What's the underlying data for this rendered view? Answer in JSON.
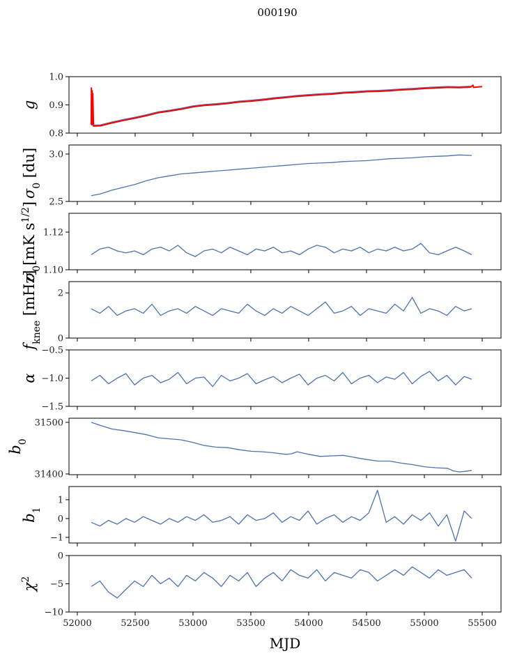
{
  "chart_data": {
    "type": "line",
    "title": "000190",
    "xlabel": "MJD",
    "xlim": [
      51928,
      55663
    ],
    "xticks": [
      52000,
      52500,
      53000,
      53500,
      54000,
      54500,
      55000,
      55500
    ],
    "line_color": "#4c72b0",
    "panels": [
      {
        "id": "g",
        "ylabel": {
          "base": "g",
          "sub": "",
          "tail": "",
          "sup": "",
          "tail2": ""
        },
        "ylim": [
          0.8,
          1.0
        ],
        "yticks": [
          0.8,
          0.9,
          1.0
        ],
        "ytick_labels": [
          "0.8",
          "0.9",
          "1.0"
        ],
        "series": [
          {
            "name": "g",
            "color": "#4c72b0",
            "width": 2.5,
            "x": [
              52140,
              52200,
              52300,
              52400,
              52500,
              52600,
              52700,
              52800,
              52900,
              53000,
              53100,
              53200,
              53300,
              53400,
              53500,
              53600,
              53700,
              53800,
              53900,
              54000,
              54100,
              54200,
              54300,
              54400,
              54500,
              54600,
              54700,
              54800,
              54900,
              55000,
              55100,
              55200,
              55300,
              55400
            ],
            "y": [
              0.827,
              0.828,
              0.838,
              0.847,
              0.855,
              0.864,
              0.874,
              0.88,
              0.887,
              0.895,
              0.9,
              0.903,
              0.907,
              0.912,
              0.915,
              0.919,
              0.924,
              0.928,
              0.932,
              0.935,
              0.938,
              0.94,
              0.944,
              0.946,
              0.949,
              0.95,
              0.952,
              0.955,
              0.957,
              0.96,
              0.962,
              0.964,
              0.963,
              0.965
            ]
          },
          {
            "name": "g_fit",
            "color": "#ff0000",
            "width": 2,
            "x": [
              52120,
              52122,
              52125,
              52128,
              52131,
              52134,
              52140,
              52200,
              52300,
              52400,
              52500,
              52600,
              52700,
              52800,
              52900,
              53000,
              53100,
              53200,
              53300,
              53400,
              53500,
              53600,
              53700,
              53800,
              53900,
              54000,
              54100,
              54200,
              54300,
              54400,
              54500,
              54600,
              54700,
              54800,
              54900,
              55000,
              55100,
              55200,
              55300,
              55400,
              55420,
              55425,
              55500
            ],
            "y": [
              0.83,
              0.96,
              0.83,
              0.95,
              0.83,
              0.94,
              0.825,
              0.826,
              0.836,
              0.845,
              0.853,
              0.862,
              0.872,
              0.878,
              0.885,
              0.893,
              0.898,
              0.901,
              0.905,
              0.91,
              0.913,
              0.917,
              0.922,
              0.926,
              0.93,
              0.933,
              0.936,
              0.938,
              0.942,
              0.944,
              0.947,
              0.948,
              0.95,
              0.953,
              0.955,
              0.958,
              0.96,
              0.962,
              0.961,
              0.963,
              0.97,
              0.962,
              0.965
            ]
          }
        ]
      },
      {
        "id": "sigma0-du",
        "ylabel": {
          "base": "σ",
          "sub": "0",
          "tail": " [du]",
          "sup": "",
          "tail2": ""
        },
        "ylim": [
          2.5,
          3.095
        ],
        "yticks": [
          2.5,
          3.0
        ],
        "ytick_labels": [
          "2.5",
          "3.0"
        ],
        "series": [
          {
            "name": "sigma0_du",
            "color": "#4c72b0",
            "width": 1.3,
            "x": [
              52120,
              52200,
              52300,
              52400,
              52500,
              52600,
              52700,
              52800,
              52900,
              53000,
              53100,
              53200,
              53300,
              53400,
              53500,
              53600,
              53700,
              53800,
              53900,
              54000,
              54100,
              54200,
              54300,
              54400,
              54500,
              54600,
              54700,
              54800,
              54900,
              55000,
              55100,
              55200,
              55300,
              55410
            ],
            "y": [
              2.56,
              2.58,
              2.62,
              2.65,
              2.68,
              2.72,
              2.75,
              2.77,
              2.79,
              2.8,
              2.81,
              2.82,
              2.83,
              2.84,
              2.85,
              2.86,
              2.87,
              2.88,
              2.89,
              2.9,
              2.905,
              2.91,
              2.92,
              2.925,
              2.93,
              2.94,
              2.95,
              2.955,
              2.96,
              2.97,
              2.975,
              2.98,
              2.99,
              2.985
            ]
          }
        ]
      },
      {
        "id": "sigma0-mk",
        "ylabel": {
          "base": "σ",
          "sub": "0",
          "tail": "[mK s",
          "sup": "1/2",
          "tail2": "]"
        },
        "ylim": [
          1.1,
          1.13
        ],
        "yticks": [
          1.1,
          1.12
        ],
        "ytick_labels": [
          "1.10",
          "1.12"
        ],
        "series": [
          {
            "name": "sigma0_mk",
            "color": "#4c72b0",
            "width": 1.3,
            "x_ref": "shared",
            "y": [
              1.108,
              1.111,
              1.112,
              1.11,
              1.109,
              1.11,
              1.108,
              1.111,
              1.112,
              1.11,
              1.113,
              1.109,
              1.107,
              1.11,
              1.111,
              1.109,
              1.112,
              1.11,
              1.108,
              1.111,
              1.11,
              1.112,
              1.109,
              1.11,
              1.108,
              1.111,
              1.113,
              1.112,
              1.109,
              1.111,
              1.11,
              1.112,
              1.109,
              1.111,
              1.11,
              1.112,
              1.11,
              1.111,
              1.114,
              1.109,
              1.108,
              1.11,
              1.112,
              1.11,
              1.108
            ]
          }
        ]
      },
      {
        "id": "fknee",
        "ylabel": {
          "base": "f",
          "sub": "knee",
          "tail": " [mHz]",
          "sup": "",
          "tail2": ""
        },
        "ylim": [
          0,
          2.5
        ],
        "yticks": [
          0,
          2
        ],
        "ytick_labels": [
          "0",
          "2"
        ],
        "series": [
          {
            "name": "fknee",
            "color": "#4c72b0",
            "width": 1.3,
            "x_ref": "shared",
            "y": [
              1.3,
              1.1,
              1.4,
              1.0,
              1.2,
              1.3,
              1.1,
              1.5,
              1.0,
              1.2,
              1.3,
              1.1,
              1.4,
              1.2,
              1.0,
              1.3,
              1.2,
              1.1,
              1.5,
              1.2,
              1.0,
              1.3,
              1.1,
              1.4,
              1.2,
              1.0,
              1.3,
              1.6,
              1.1,
              1.2,
              1.4,
              1.0,
              1.3,
              1.2,
              1.1,
              1.5,
              1.2,
              1.8,
              1.1,
              1.3,
              1.2,
              1.0,
              1.4,
              1.2,
              1.3
            ]
          }
        ]
      },
      {
        "id": "alpha",
        "ylabel": {
          "base": "α",
          "sub": "",
          "tail": "",
          "sup": "",
          "tail2": ""
        },
        "ylim": [
          -1.5,
          -0.5
        ],
        "yticks": [
          -1.5,
          -1.0,
          -0.5
        ],
        "ytick_labels": [
          "−1.5",
          "−1.0",
          "−0.5"
        ],
        "series": [
          {
            "name": "alpha",
            "color": "#4c72b0",
            "width": 1.3,
            "x_ref": "shared",
            "y": [
              -1.05,
              -0.95,
              -1.1,
              -1.0,
              -0.92,
              -1.12,
              -1.0,
              -0.95,
              -1.08,
              -1.02,
              -0.9,
              -1.1,
              -1.0,
              -0.98,
              -1.15,
              -0.95,
              -1.05,
              -1.0,
              -0.92,
              -1.1,
              -1.03,
              -0.97,
              -1.08,
              -1.0,
              -0.93,
              -1.12,
              -1.0,
              -0.95,
              -1.05,
              -0.9,
              -1.1,
              -1.0,
              -0.95,
              -1.08,
              -0.98,
              -1.02,
              -0.9,
              -1.1,
              -0.97,
              -0.88,
              -1.05,
              -0.95,
              -1.12,
              -0.97,
              -1.02
            ]
          }
        ]
      },
      {
        "id": "b0",
        "ylabel": {
          "base": "b",
          "sub": "0",
          "tail": "",
          "sup": "",
          "tail2": ""
        },
        "ylim": [
          31398.6,
          31508
        ],
        "yticks": [
          31400,
          31500
        ],
        "ytick_labels": [
          "31400",
          "31500"
        ],
        "series": [
          {
            "name": "b0",
            "color": "#4c72b0",
            "width": 1.3,
            "x": [
              52120,
              52200,
              52300,
              52400,
              52500,
              52600,
              52700,
              52800,
              52900,
              53000,
              53100,
              53200,
              53300,
              53400,
              53500,
              53600,
              53700,
              53800,
              53850,
              53900,
              54000,
              54100,
              54200,
              54300,
              54400,
              54500,
              54600,
              54700,
              54800,
              54900,
              55000,
              55100,
              55200,
              55250,
              55300,
              55350,
              55410
            ],
            "y": [
              31500,
              31494,
              31487,
              31484,
              31480,
              31476,
              31470,
              31468,
              31466,
              31461,
              31455,
              31452,
              31451,
              31447,
              31444,
              31443,
              31441,
              31438,
              31439,
              31443,
              31438,
              31434,
              31435,
              31436,
              31432,
              31428,
              31425,
              31425,
              31421,
              31418,
              31414,
              31412,
              31411,
              31406,
              31404,
              31405,
              31407
            ]
          }
        ]
      },
      {
        "id": "b1",
        "ylabel": {
          "base": "b",
          "sub": "1",
          "tail": "",
          "sup": "",
          "tail2": ""
        },
        "ylim": [
          -1.3,
          1.7
        ],
        "yticks": [
          -1,
          0,
          1
        ],
        "ytick_labels": [
          "−1",
          "0",
          "1"
        ],
        "series": [
          {
            "name": "b1",
            "color": "#4c72b0",
            "width": 1.3,
            "x_ref": "shared",
            "y": [
              -0.2,
              -0.4,
              -0.1,
              -0.3,
              0.0,
              -0.2,
              0.1,
              -0.1,
              -0.3,
              0.0,
              -0.2,
              0.1,
              -0.1,
              0.2,
              -0.2,
              -0.1,
              0.1,
              -0.3,
              0.2,
              -0.1,
              0.0,
              0.3,
              -0.2,
              0.1,
              -0.1,
              0.4,
              -0.3,
              0.0,
              0.2,
              -0.2,
              0.1,
              -0.1,
              0.3,
              1.5,
              -0.2,
              0.1,
              -0.3,
              0.2,
              -0.1,
              0.3,
              -0.4,
              0.2,
              -1.2,
              0.4,
              0.0
            ]
          }
        ]
      },
      {
        "id": "chi2",
        "ylabel": {
          "base": "χ",
          "sub": "",
          "tail": "",
          "sup": "2",
          "tail2": ""
        },
        "ylim": [
          -10,
          0
        ],
        "yticks": [
          -10,
          -5,
          0
        ],
        "ytick_labels": [
          "−10",
          "−5",
          "0"
        ],
        "series": [
          {
            "name": "chi2",
            "color": "#4c72b0",
            "width": 1.3,
            "x_ref": "shared",
            "y": [
              -5.5,
              -4.5,
              -6.5,
              -7.5,
              -6.0,
              -4.5,
              -5.5,
              -3.5,
              -5.0,
              -4.0,
              -5.5,
              -3.5,
              -4.5,
              -3.0,
              -4.0,
              -5.5,
              -3.5,
              -4.5,
              -3.0,
              -5.5,
              -4.0,
              -3.0,
              -4.5,
              -2.5,
              -3.5,
              -4.0,
              -2.5,
              -4.5,
              -3.0,
              -3.5,
              -4.0,
              -2.5,
              -3.0,
              -4.5,
              -3.5,
              -2.5,
              -3.5,
              -2.0,
              -3.0,
              -4.0,
              -2.5,
              -3.5,
              -3.0,
              -2.5,
              -4.0
            ]
          }
        ]
      }
    ],
    "shared_x": [
      52120,
      52195,
      52270,
      52345,
      52420,
      52495,
      52570,
      52645,
      52720,
      52795,
      52870,
      52945,
      53020,
      53095,
      53170,
      53245,
      53320,
      53395,
      53470,
      53545,
      53620,
      53695,
      53770,
      53845,
      53920,
      53995,
      54070,
      54145,
      54220,
      54295,
      54370,
      54445,
      54520,
      54595,
      54670,
      54745,
      54820,
      54895,
      54970,
      55045,
      55120,
      55195,
      55270,
      55345,
      55410
    ]
  }
}
